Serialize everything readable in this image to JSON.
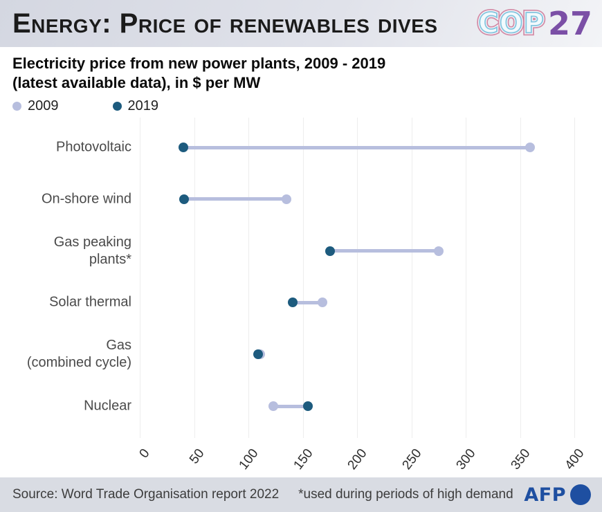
{
  "header": {
    "title": "Energy: Price of renewables dives",
    "cop27": {
      "cop": "COP",
      "year": "27"
    }
  },
  "subtitle": {
    "line1": "Electricity price from new power plants, 2009 - 2019",
    "line2": "(latest available data), in $ per MW"
  },
  "legend": {
    "items": [
      {
        "label": "2009"
      },
      {
        "label": "2019"
      }
    ]
  },
  "chart_data": {
    "type": "dumbbell",
    "title": "Electricity price from new power plants, 2009 - 2019 (latest available data), in $ per MW",
    "categories": [
      "Photovoltaic",
      "On-shore wind",
      "Gas peaking plants*",
      "Solar thermal",
      "Gas (combined cycle)",
      "Nuclear"
    ],
    "category_lines": [
      [
        "Photovoltaic"
      ],
      [
        "On-shore wind"
      ],
      [
        "Gas peaking",
        "plants*"
      ],
      [
        "Solar thermal"
      ],
      [
        "Gas",
        "(combined cycle)"
      ],
      [
        "Nuclear"
      ]
    ],
    "series": [
      {
        "name": "2009",
        "color": "#b7bede",
        "values": [
          359,
          135,
          275,
          168,
          111,
          123
        ]
      },
      {
        "name": "2019",
        "color": "#1d5b7e",
        "values": [
          40,
          41,
          175,
          141,
          109,
          155
        ]
      }
    ],
    "xlabel": "",
    "ylabel": "",
    "xlim": [
      0,
      400
    ],
    "xticks": [
      0,
      50,
      100,
      150,
      200,
      250,
      300,
      350,
      400
    ],
    "grid": true,
    "legend_position": "top-left"
  },
  "colors": {
    "series_2009": "#b7bede",
    "series_2019": "#1d5b7e",
    "cop_purple": "#7b4fa6",
    "afp_blue": "#1e4fa1"
  },
  "footer": {
    "source": "Source: Word Trade Organisation report 2022",
    "footnote": "*used during periods of high demand",
    "afp": "AFP"
  }
}
